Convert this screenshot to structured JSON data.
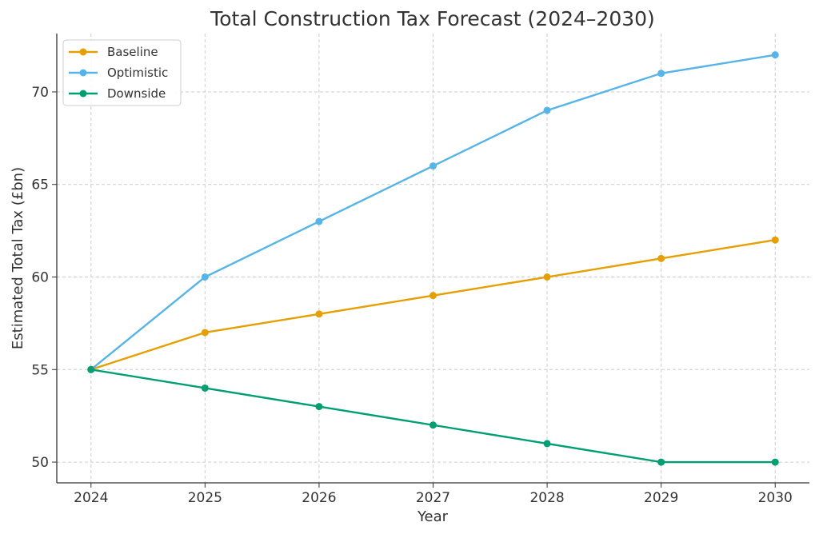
{
  "chart_data": {
    "type": "line",
    "title": "Total Construction Tax Forecast (2024–2030)",
    "xlabel": "Year",
    "ylabel": "Estimated Total Tax (£bn)",
    "x": [
      2024,
      2025,
      2026,
      2027,
      2028,
      2029,
      2030
    ],
    "xticks": [
      "2024",
      "2025",
      "2026",
      "2027",
      "2028",
      "2029",
      "2030"
    ],
    "yticks": [
      "50",
      "55",
      "60",
      "65",
      "70"
    ],
    "ytick_values": [
      50,
      55,
      60,
      65,
      70
    ],
    "xlim": [
      2023.7,
      2030.3
    ],
    "ylim": [
      48.88,
      73.15
    ],
    "grid": true,
    "legend_position": "top-left",
    "series": [
      {
        "name": "Baseline",
        "color": "#E69F00",
        "values": [
          55,
          57,
          58,
          59,
          60,
          61,
          62
        ]
      },
      {
        "name": "Optimistic",
        "color": "#56B4E9",
        "values": [
          55,
          60,
          63,
          66,
          69,
          71,
          72
        ]
      },
      {
        "name": "Downside",
        "color": "#009E73",
        "values": [
          55,
          54,
          53,
          52,
          51,
          50,
          50
        ]
      }
    ]
  }
}
